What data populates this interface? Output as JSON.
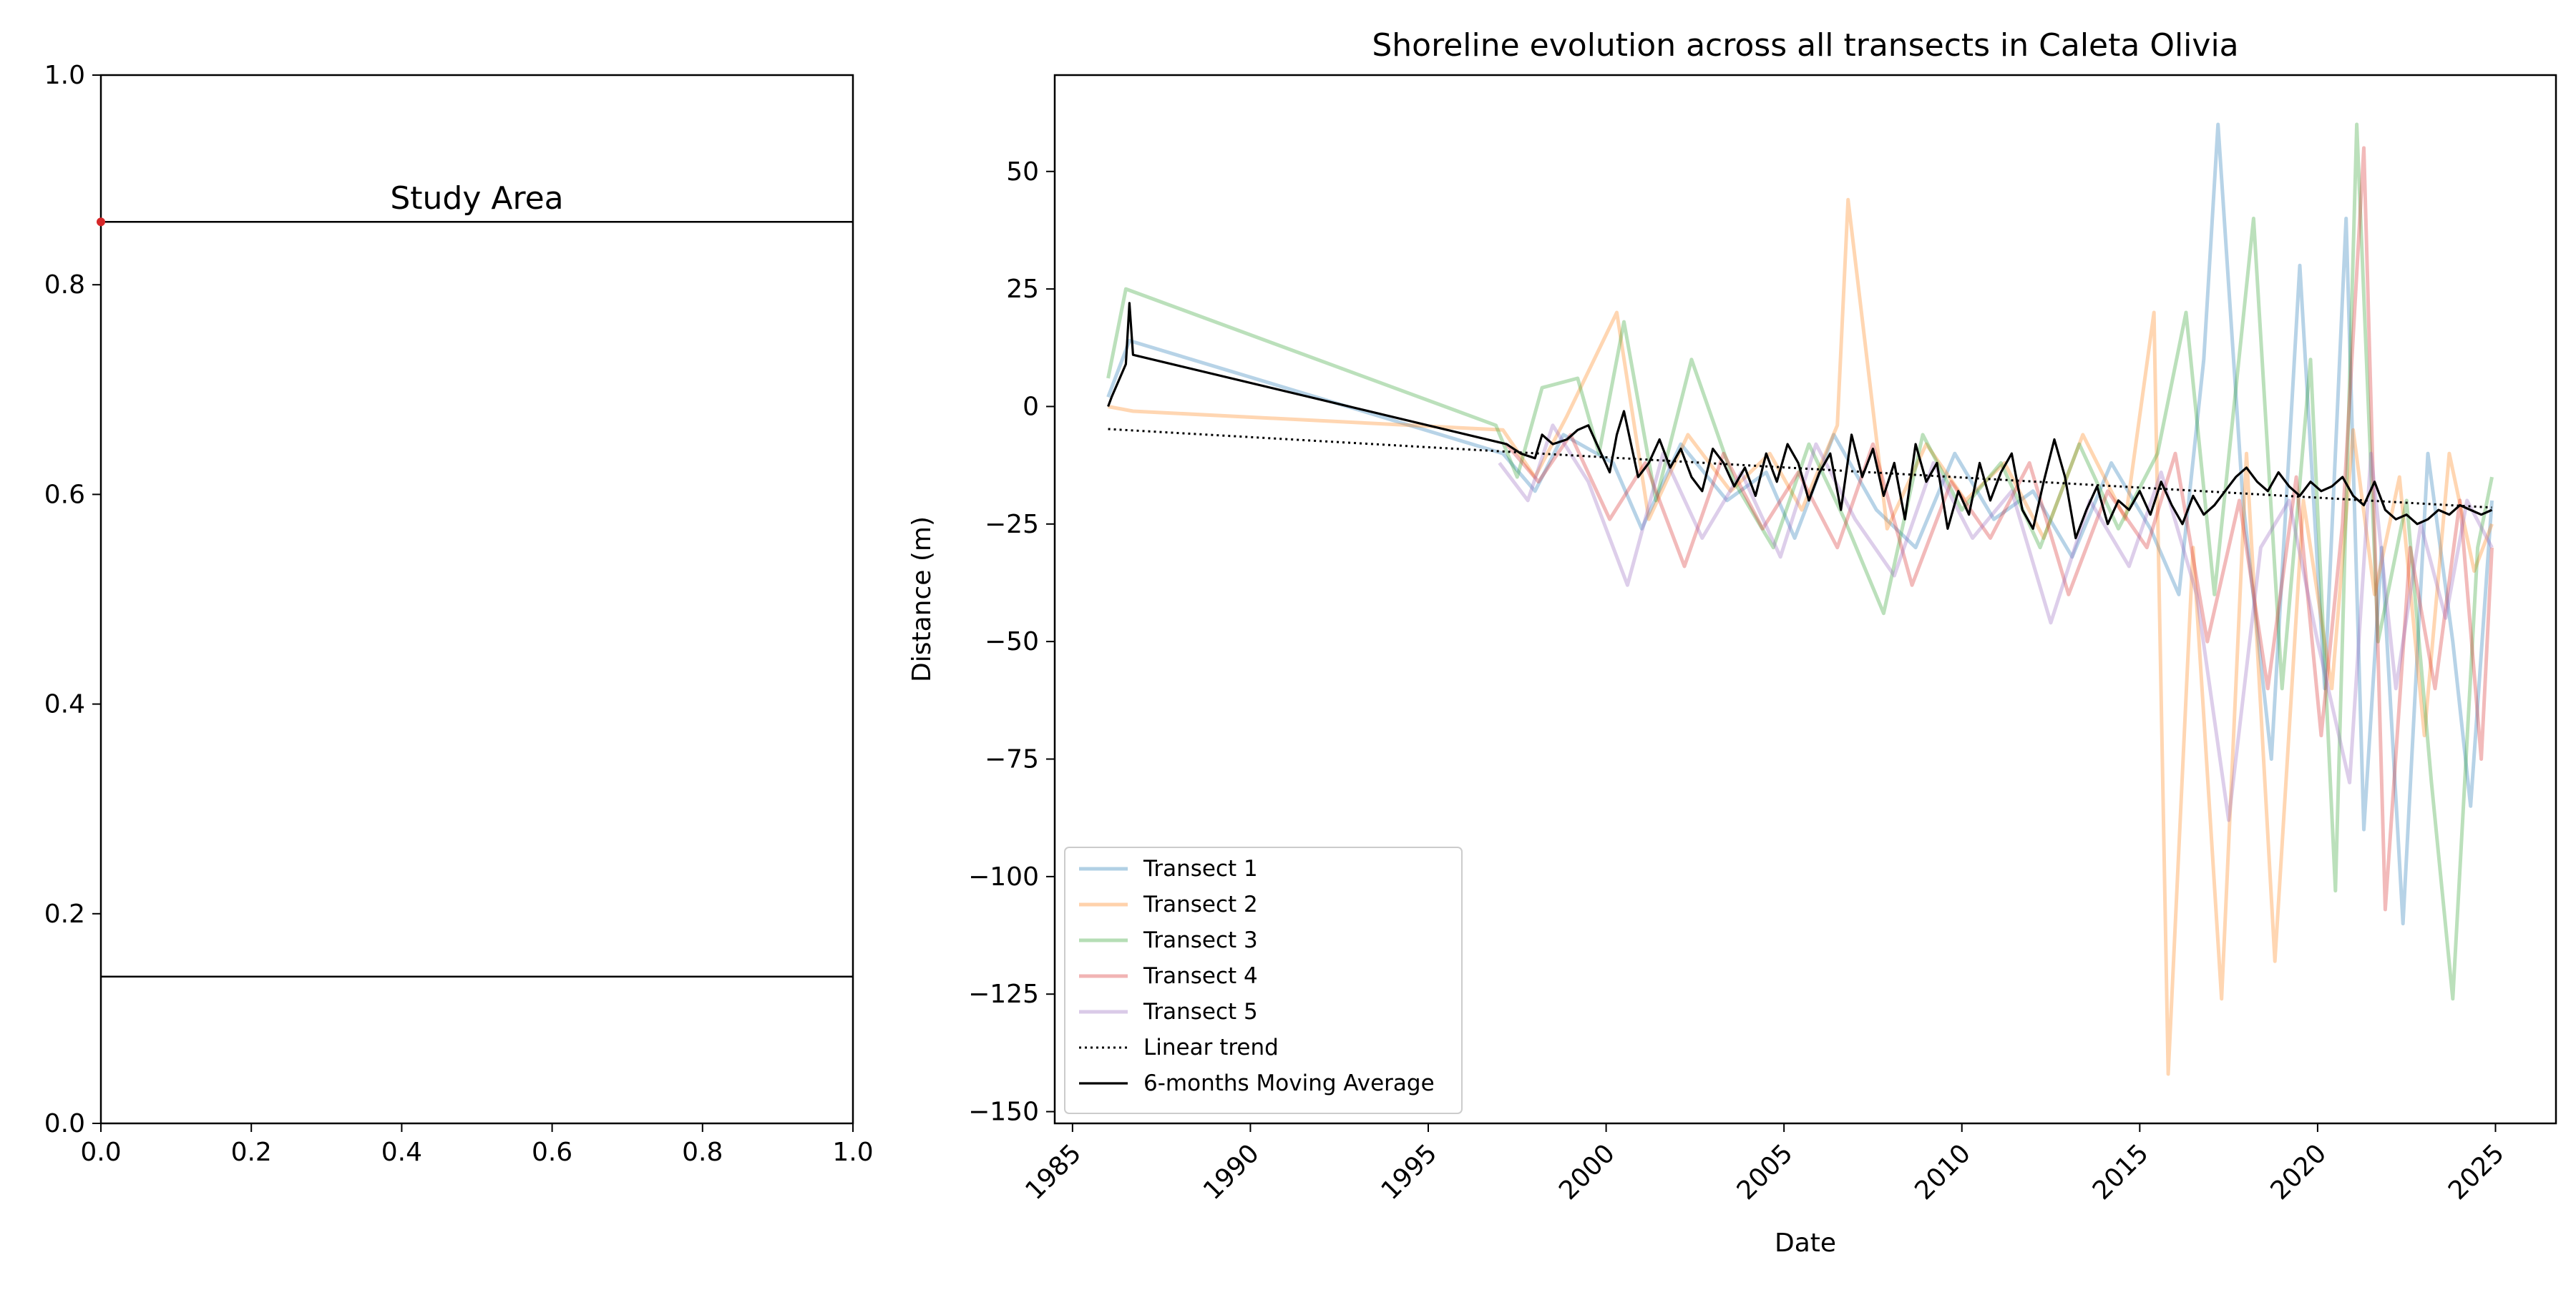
{
  "chart_data": [
    {
      "type": "line",
      "title": "Study Area",
      "xlabel": "",
      "ylabel": "",
      "xlim": [
        0.0,
        1.0
      ],
      "ylim": [
        0.0,
        1.0
      ],
      "xticks": [
        "0.0",
        "0.2",
        "0.4",
        "0.6",
        "0.8",
        "1.0"
      ],
      "yticks": [
        "0.0",
        "0.2",
        "0.4",
        "0.6",
        "0.8",
        "1.0"
      ],
      "lines": [
        {
          "y": 0.86,
          "color": "#000000"
        },
        {
          "y": 0.14,
          "color": "#000000"
        }
      ],
      "points": [
        {
          "x": 0.0,
          "y": 0.86,
          "color": "#d62728"
        }
      ],
      "grid": false
    },
    {
      "type": "line",
      "title": "Shoreline evolution across all transects in Caleta Olivia",
      "xlabel": "Date",
      "ylabel": "Distance (m)",
      "xlim": [
        1984.5,
        2026.7
      ],
      "ylim": [
        -152.5,
        70.5
      ],
      "xticks": [
        "1985",
        "1990",
        "1995",
        "2000",
        "2005",
        "2010",
        "2015",
        "2020",
        "2025"
      ],
      "yticks": [
        "50",
        "25",
        "0",
        "−25",
        "−50",
        "−75",
        "−100",
        "−125",
        "−150"
      ],
      "ytick_values": [
        50,
        25,
        0,
        -25,
        -50,
        -75,
        -100,
        -125,
        -150
      ],
      "grid": false,
      "legend_position": "lower-left",
      "series": [
        {
          "name": "Transect 1",
          "color": "#1f77b4",
          "style": "solid-faint",
          "x": [
            1986.0,
            1986.6,
            1997.1,
            1998.0,
            1998.8,
            2000.2,
            2001.0,
            2002.1,
            2003.4,
            2004.5,
            2005.3,
            2006.4,
            2007.6,
            2008.7,
            2009.8,
            2010.9,
            2012.0,
            2013.1,
            2014.2,
            2015.3,
            2016.1,
            2016.8,
            2017.2,
            2017.9,
            2018.7,
            2019.5,
            2020.2,
            2020.8,
            2021.3,
            2021.8,
            2022.4,
            2023.1,
            2023.8,
            2024.3,
            2024.9
          ],
          "y": [
            2,
            14,
            -10,
            -18,
            -6,
            -12,
            -26,
            -8,
            -20,
            -14,
            -28,
            -6,
            -22,
            -30,
            -10,
            -24,
            -18,
            -32,
            -12,
            -26,
            -40,
            10,
            60,
            -20,
            -75,
            30,
            -60,
            40,
            -90,
            -30,
            -110,
            -10,
            -50,
            -85,
            -20
          ]
        },
        {
          "name": "Transect 2",
          "color": "#ff7f0e",
          "style": "solid-faint",
          "x": [
            1986.0,
            1986.7,
            1997.1,
            1998.0,
            1998.9,
            2000.3,
            2001.2,
            2002.3,
            2003.5,
            2004.6,
            2005.5,
            2006.5,
            2006.8,
            2007.9,
            2009.0,
            2010.1,
            2011.2,
            2012.3,
            2013.4,
            2014.6,
            2015.4,
            2015.8,
            2016.5,
            2017.3,
            2018.0,
            2018.8,
            2019.6,
            2020.4,
            2021.0,
            2021.6,
            2022.3,
            2023.0,
            2023.7,
            2024.4,
            2024.9
          ],
          "y": [
            0,
            -1,
            -5,
            -15,
            -2,
            20,
            -24,
            -6,
            -18,
            -10,
            -22,
            -4,
            44,
            -26,
            -8,
            -20,
            -12,
            -28,
            -6,
            -24,
            20,
            -142,
            -30,
            -126,
            -10,
            -118,
            -20,
            -60,
            -5,
            -40,
            -15,
            -70,
            -10,
            -35,
            -25
          ]
        },
        {
          "name": "Transect 3",
          "color": "#2ca02c",
          "style": "solid-faint",
          "x": [
            1986.0,
            1986.5,
            1996.9,
            1997.5,
            1998.2,
            1999.2,
            1999.8,
            2000.5,
            2001.4,
            2002.4,
            2003.6,
            2004.7,
            2005.7,
            2006.7,
            2007.8,
            2008.9,
            2010.0,
            2011.1,
            2012.2,
            2013.3,
            2014.4,
            2015.5,
            2016.3,
            2017.1,
            2018.2,
            2019.0,
            2019.8,
            2020.5,
            2021.1,
            2021.7,
            2022.5,
            2023.2,
            2023.8,
            2024.5,
            2024.9
          ],
          "y": [
            6,
            25,
            -4,
            -15,
            4,
            6,
            -10,
            18,
            -20,
            10,
            -16,
            -30,
            -8,
            -24,
            -44,
            -6,
            -22,
            -12,
            -30,
            -8,
            -26,
            -10,
            20,
            -40,
            40,
            -60,
            10,
            -103,
            60,
            -50,
            -20,
            -80,
            -126,
            -30,
            -15
          ]
        },
        {
          "name": "Transect 4",
          "color": "#d62728",
          "style": "solid-faint",
          "x": [
            1997.2,
            1998.1,
            1999.0,
            2000.1,
            2001.1,
            2002.2,
            2003.3,
            2004.4,
            2005.4,
            2006.5,
            2007.5,
            2008.6,
            2009.7,
            2010.8,
            2011.9,
            2013.0,
            2014.1,
            2015.2,
            2016.0,
            2016.9,
            2017.8,
            2018.6,
            2019.4,
            2020.1,
            2020.7,
            2021.3,
            2021.9,
            2022.6,
            2023.3,
            2024.0,
            2024.6,
            2024.9
          ],
          "y": [
            -8,
            -16,
            -6,
            -24,
            -12,
            -34,
            -10,
            -26,
            -14,
            -30,
            -8,
            -38,
            -16,
            -28,
            -12,
            -40,
            -18,
            -30,
            -10,
            -50,
            -20,
            -60,
            -15,
            -70,
            -25,
            55,
            -107,
            -30,
            -60,
            -20,
            -75,
            -30
          ]
        },
        {
          "name": "Transect 5",
          "color": "#9467bd",
          "style": "solid-faint",
          "x": [
            1997.0,
            1997.8,
            1998.5,
            1999.5,
            2000.6,
            2001.6,
            2002.7,
            2003.8,
            2004.9,
            2005.9,
            2007.0,
            2008.1,
            2009.2,
            2010.3,
            2011.4,
            2012.5,
            2013.6,
            2014.7,
            2015.6,
            2016.6,
            2017.5,
            2018.4,
            2019.2,
            2020.0,
            2020.9,
            2021.5,
            2022.2,
            2022.9,
            2023.6,
            2024.2,
            2024.9
          ],
          "y": [
            -12,
            -20,
            -4,
            -16,
            -38,
            -10,
            -28,
            -14,
            -32,
            -8,
            -24,
            -36,
            -12,
            -28,
            -18,
            -46,
            -20,
            -34,
            -14,
            -40,
            -88,
            -30,
            -20,
            -50,
            -80,
            -10,
            -60,
            -25,
            -45,
            -20,
            -30
          ]
        },
        {
          "name": "Linear trend",
          "color": "#000000",
          "style": "dotted",
          "x": [
            1986.0,
            2024.9
          ],
          "y": [
            -4.8,
            -21.5
          ]
        },
        {
          "name": "6-months Moving Average",
          "color": "#000000",
          "style": "solid",
          "x": [
            1986.0,
            1986.1,
            1986.5,
            1986.6,
            1986.7,
            1997.2,
            1997.6,
            1998.0,
            1998.2,
            1998.5,
            1998.9,
            1999.2,
            1999.5,
            1999.8,
            2000.1,
            2000.3,
            2000.5,
            2000.7,
            2000.9,
            2001.2,
            2001.5,
            2001.8,
            2002.1,
            2002.4,
            2002.7,
            2003.0,
            2003.3,
            2003.6,
            2003.9,
            2004.2,
            2004.5,
            2004.8,
            2005.1,
            2005.4,
            2005.7,
            2006.0,
            2006.3,
            2006.6,
            2006.9,
            2007.2,
            2007.5,
            2007.8,
            2008.1,
            2008.4,
            2008.7,
            2009.0,
            2009.3,
            2009.6,
            2009.9,
            2010.2,
            2010.5,
            2010.8,
            2011.1,
            2011.4,
            2011.7,
            2012.0,
            2012.3,
            2012.6,
            2012.9,
            2013.2,
            2013.5,
            2013.8,
            2014.1,
            2014.4,
            2014.7,
            2015.0,
            2015.3,
            2015.6,
            2015.9,
            2016.2,
            2016.5,
            2016.8,
            2017.1,
            2017.4,
            2017.7,
            2018.0,
            2018.3,
            2018.6,
            2018.9,
            2019.2,
            2019.5,
            2019.8,
            2020.1,
            2020.4,
            2020.7,
            2021.0,
            2021.3,
            2021.6,
            2021.9,
            2022.2,
            2022.5,
            2022.8,
            2023.1,
            2023.4,
            2023.7,
            2024.0,
            2024.3,
            2024.6,
            2024.9
          ],
          "y": [
            0,
            2,
            9,
            22,
            11,
            -8,
            -10,
            -11,
            -6,
            -8,
            -7,
            -5,
            -4,
            -9,
            -14,
            -6,
            -1,
            -8,
            -15,
            -12,
            -7,
            -13,
            -9,
            -15,
            -18,
            -9,
            -12,
            -17,
            -13,
            -19,
            -10,
            -16,
            -8,
            -12,
            -20,
            -14,
            -10,
            -22,
            -6,
            -15,
            -9,
            -19,
            -12,
            -24,
            -8,
            -16,
            -12,
            -26,
            -18,
            -23,
            -12,
            -20,
            -14,
            -10,
            -22,
            -26,
            -16,
            -7,
            -15,
            -28,
            -22,
            -17,
            -25,
            -20,
            -22,
            -18,
            -23,
            -16,
            -21,
            -25,
            -19,
            -23,
            -21,
            -18,
            -15,
            -13,
            -16,
            -18,
            -14,
            -17,
            -19,
            -16,
            -18,
            -17,
            -15,
            -19,
            -21,
            -16,
            -22,
            -24,
            -23,
            -25,
            -24,
            -22,
            -23,
            -21,
            -22,
            -23,
            -22
          ]
        }
      ]
    }
  ]
}
